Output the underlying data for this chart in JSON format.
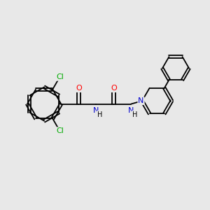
{
  "bg_color": "#e8e8e8",
  "atom_colors": {
    "C": "#000000",
    "N": "#0000cd",
    "O": "#ff0000",
    "Cl": "#00aa00",
    "H": "#000000"
  },
  "bond_color": "#000000",
  "bond_lw": 1.3,
  "font_size": 8.0,
  "figsize": [
    3.0,
    3.0
  ],
  "dpi": 100
}
